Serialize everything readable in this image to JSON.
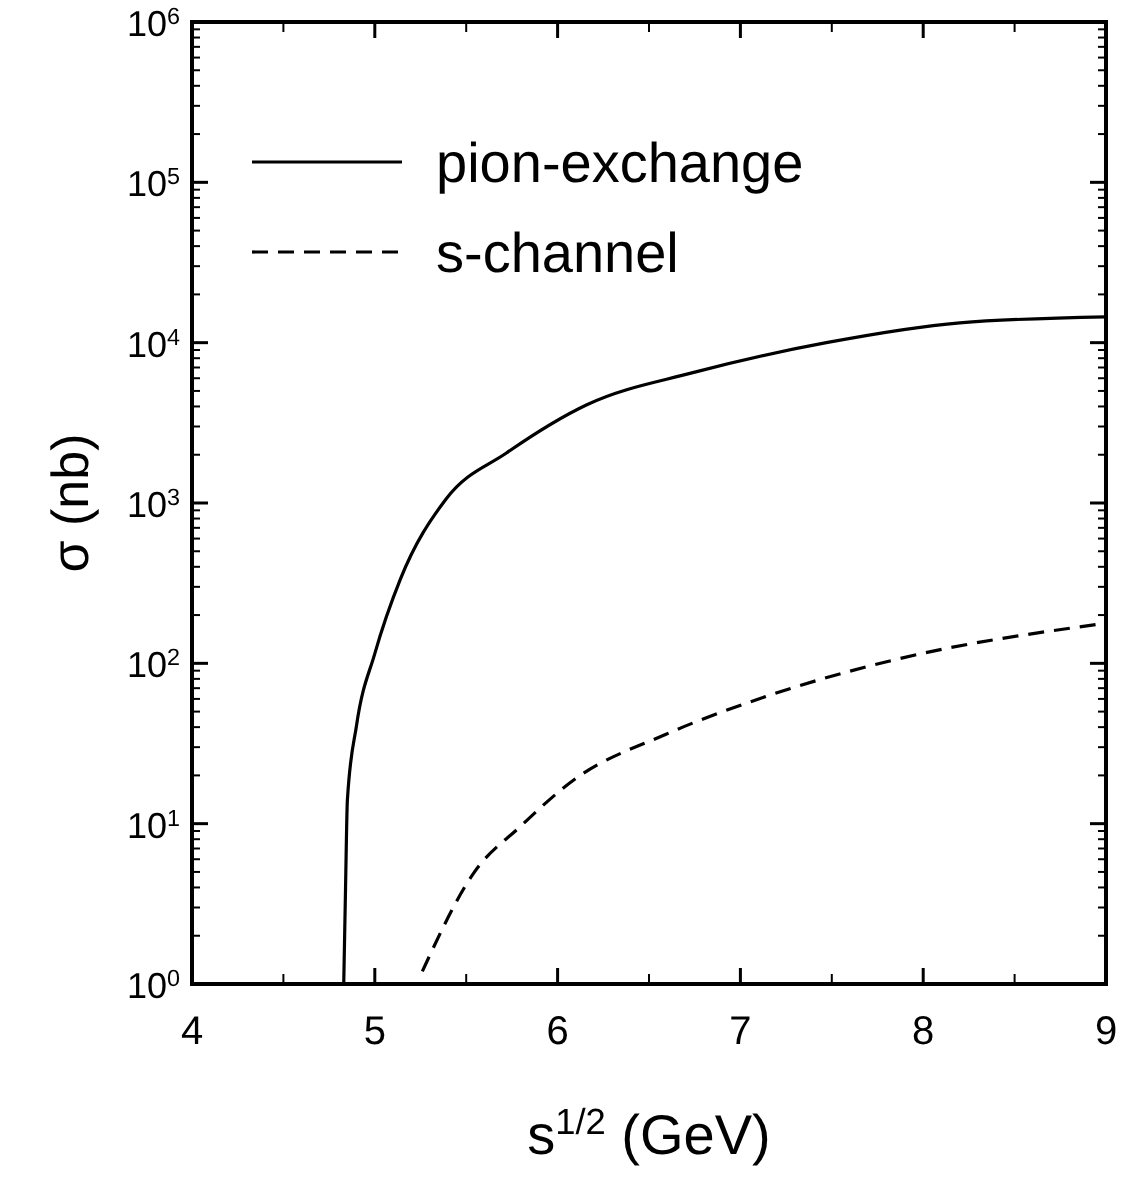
{
  "chart_data": {
    "type": "line",
    "xlabel": "s$^{1/2}$ (GeV)",
    "ylabel": "σ (nb)",
    "log": "y",
    "xlim": [
      4,
      9
    ],
    "ylim": [
      1,
      1000000
    ],
    "xticks": [
      4,
      5,
      6,
      7,
      8,
      9
    ],
    "yticks": [
      {
        "value": 1,
        "label": "10$^{0}$"
      },
      {
        "value": 10,
        "label": "10$^{1}$"
      },
      {
        "value": 100,
        "label": "10$^{2}$"
      },
      {
        "value": 1000,
        "label": "10$^{3}$"
      },
      {
        "value": 10000,
        "label": "10$^{4}$"
      },
      {
        "value": 100000,
        "label": "10$^{5}$"
      },
      {
        "value": 1000000,
        "label": "10$^{6}$"
      }
    ],
    "legend": "top left",
    "grid": false,
    "series": [
      {
        "name": "pion-exchange",
        "color": "#000000",
        "line_style": "solid",
        "x": [
          4.83,
          4.84,
          4.85,
          4.9,
          5.0,
          5.14,
          5.39,
          5.72,
          6.16,
          6.74,
          7.47,
          8.2,
          9.0
        ],
        "values": [
          1,
          4,
          14,
          41,
          115,
          335,
          1060,
          2050,
          4100,
          6500,
          10000,
          13300,
          14500
        ]
      },
      {
        "name": "s-channel",
        "color": "#000000",
        "line_style": "dashed",
        "x": [
          5.26,
          5.54,
          5.8,
          6.09,
          6.59,
          7.1,
          7.84,
          9.0
        ],
        "values": [
          1.2,
          4.9,
          9.7,
          18.8,
          36,
          60,
          105,
          178
        ]
      }
    ]
  }
}
